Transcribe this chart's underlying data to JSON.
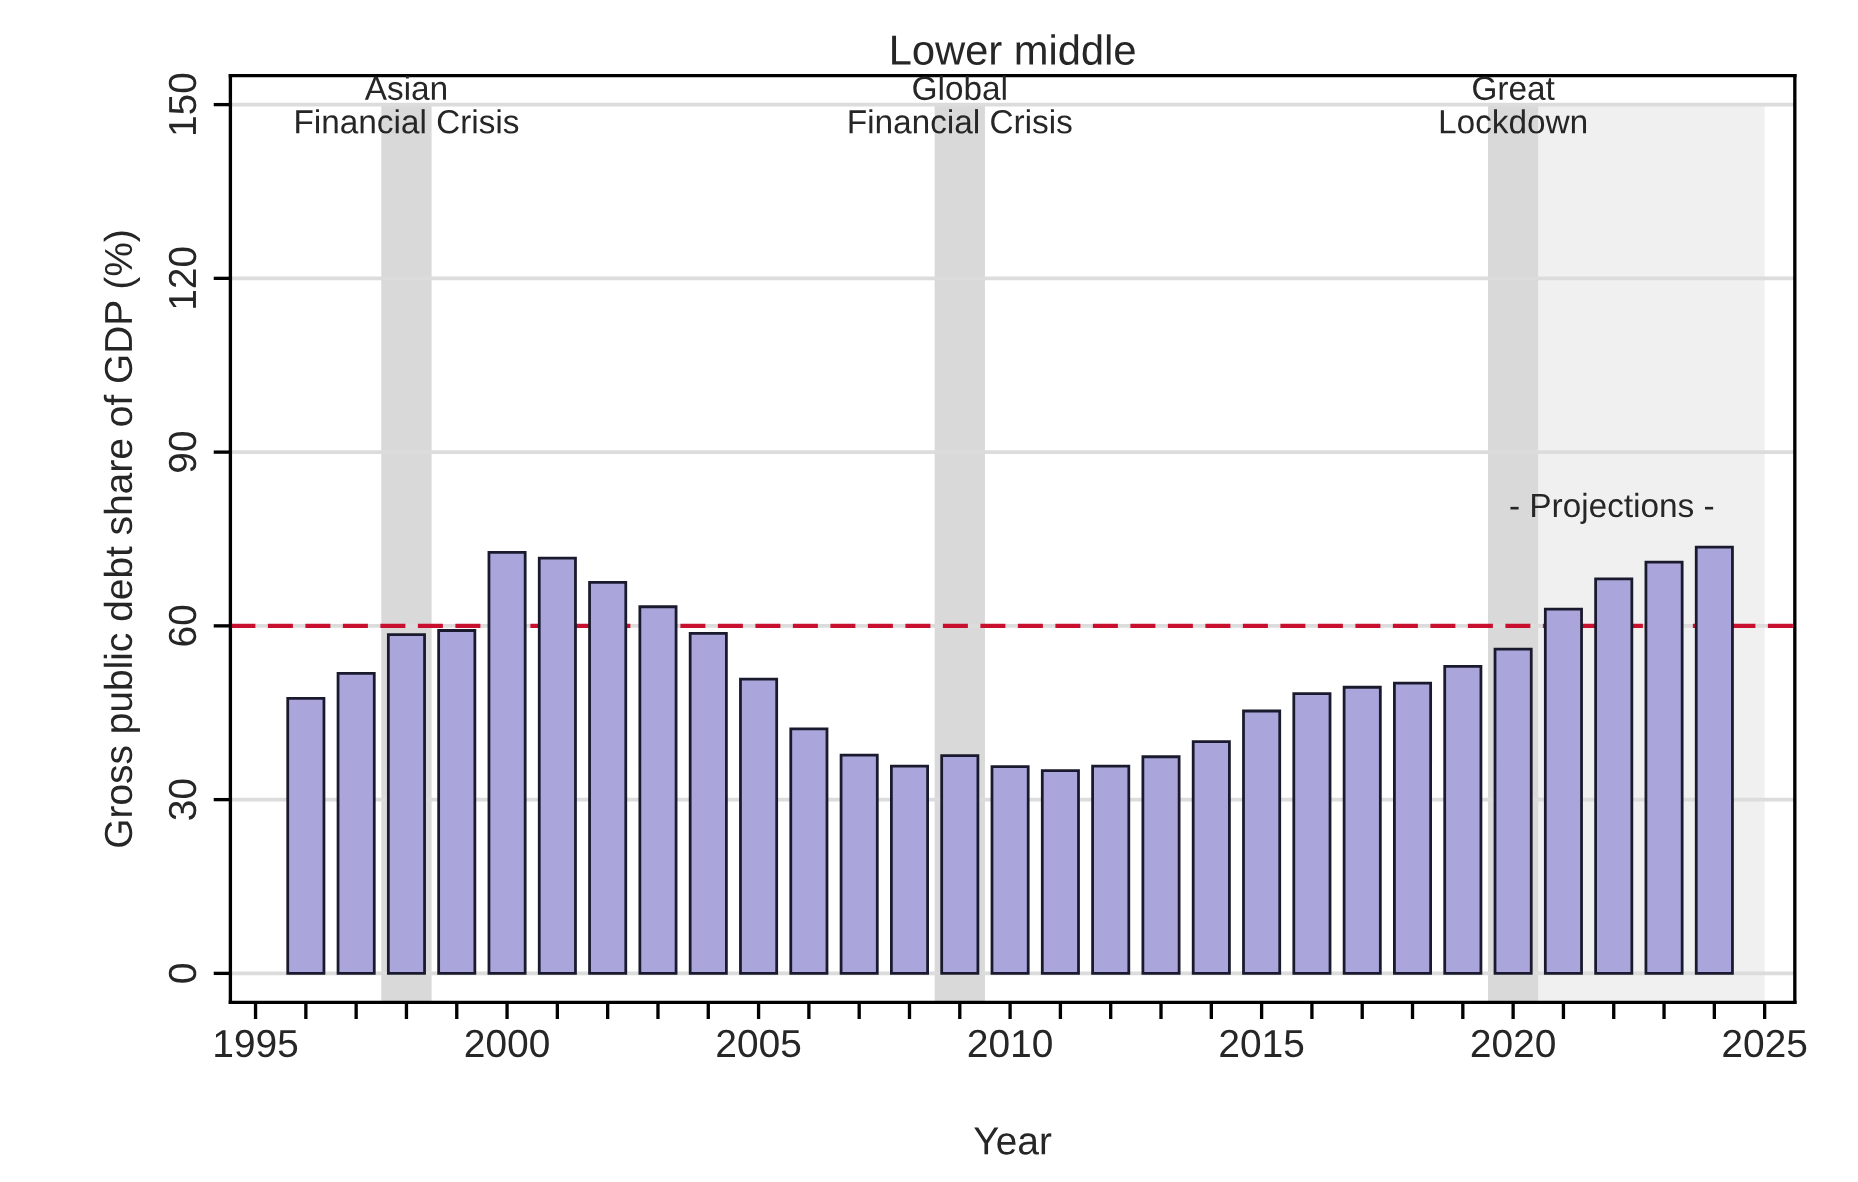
{
  "chart_data": {
    "type": "bar",
    "title": "Lower middle",
    "xlabel": "Year",
    "ylabel": "Gross public debt share of GDP (%)",
    "x": [
      1996,
      1997,
      1998,
      1999,
      2000,
      2001,
      2002,
      2003,
      2004,
      2005,
      2006,
      2007,
      2008,
      2009,
      2010,
      2011,
      2012,
      2013,
      2014,
      2015,
      2016,
      2017,
      2018,
      2019,
      2020,
      2021,
      2022,
      2023,
      2024
    ],
    "series": [
      {
        "color": "#aaa6dc",
        "values": [
          47.5,
          51.8,
          58.5,
          59.2,
          72.7,
          71.7,
          67.5,
          63.3,
          58.7,
          50.8,
          42.2,
          37.7,
          35.8,
          37.6,
          35.7,
          35.0,
          35.8,
          37.4,
          40.0,
          45.3,
          48.3,
          49.4,
          50.1,
          53.0,
          56.0,
          62.9,
          68.1,
          71.0,
          73.6
        ]
      }
    ],
    "xlim": [
      1994.5,
      2025.6
    ],
    "xticks": [
      1995,
      {
        "value": 1996,
        "label": null
      },
      {
        "value": 1997,
        "label": null
      },
      {
        "value": 1998,
        "label": null
      },
      {
        "value": 1999,
        "label": null
      },
      2000,
      {
        "value": 2001,
        "label": null
      },
      {
        "value": 2002,
        "label": null
      },
      {
        "value": 2003,
        "label": null
      },
      {
        "value": 2004,
        "label": null
      },
      2005,
      {
        "value": 2006,
        "label": null
      },
      {
        "value": 2007,
        "label": null
      },
      {
        "value": 2008,
        "label": null
      },
      {
        "value": 2009,
        "label": null
      },
      2010,
      {
        "value": 2011,
        "label": null
      },
      {
        "value": 2012,
        "label": null
      },
      {
        "value": 2013,
        "label": null
      },
      {
        "value": 2014,
        "label": null
      },
      2015,
      {
        "value": 2016,
        "label": null
      },
      {
        "value": 2017,
        "label": null
      },
      {
        "value": 2018,
        "label": null
      },
      {
        "value": 2019,
        "label": null
      },
      2020,
      {
        "value": 2021,
        "label": null
      },
      {
        "value": 2022,
        "label": null
      },
      {
        "value": 2023,
        "label": null
      },
      {
        "value": 2024,
        "label": null
      },
      2025
    ],
    "ylim": [
      -5,
      155
    ],
    "yticks": [
      0,
      30,
      60,
      90,
      120,
      150
    ],
    "grid": "y",
    "ref_lines": [
      {
        "axis": "y",
        "value": 60,
        "color": "#c8102e",
        "line_style": "dashed"
      }
    ],
    "bands": [
      {
        "axis": "x",
        "from": 2020.5,
        "to": 2025,
        "color": "#f0f0f0"
      },
      {
        "axis": "x",
        "from": 1997.5,
        "to": 1998.5,
        "label": "Asian\nFinancial Crisis",
        "color": "#d9d9d9"
      },
      {
        "axis": "x",
        "from": 2008.5,
        "to": 2009.5,
        "label": "Global\nFinancial Crisis",
        "color": "#d9d9d9"
      },
      {
        "axis": "x",
        "from": 2019.5,
        "to": 2020.5,
        "label": "Great\nLockdown",
        "color": "#d9d9d9"
      }
    ],
    "annotations": [
      "- Projections -"
    ]
  }
}
